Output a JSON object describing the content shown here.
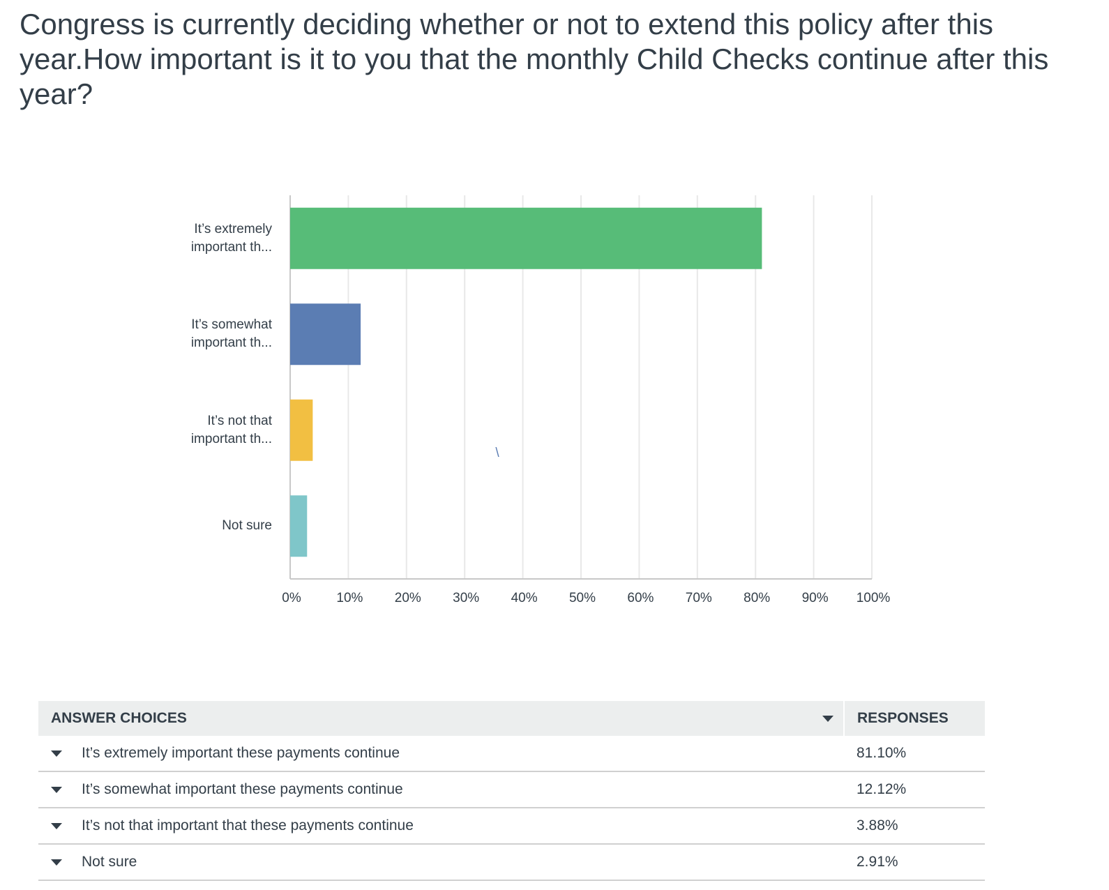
{
  "chart_data": {
    "type": "hbar",
    "title": "Congress is currently deciding whether or not to extend this policy after this year.How important is it to you that the monthly Child Checks continue after this year?",
    "categories": [
      "It’s extremely important th...",
      "It’s somewhat important th...",
      "It’s not that important th...",
      "Not sure"
    ],
    "values": [
      81.1,
      12.12,
      3.88,
      2.91
    ],
    "colors": [
      "#57bc78",
      "#5b7db3",
      "#f2bf42",
      "#7fc6c9"
    ],
    "xlim": [
      0,
      100
    ],
    "xticks": [
      {
        "value": 0,
        "label": "0%"
      },
      {
        "value": 10,
        "label": "10%"
      },
      {
        "value": 20,
        "label": "20%"
      },
      {
        "value": 30,
        "label": "30%"
      },
      {
        "value": 40,
        "label": "40%"
      },
      {
        "value": 50,
        "label": "50%"
      },
      {
        "value": 60,
        "label": "60%"
      },
      {
        "value": 70,
        "label": "70%"
      },
      {
        "value": 80,
        "label": "80%"
      },
      {
        "value": 90,
        "label": "90%"
      },
      {
        "value": 100,
        "label": "100%"
      }
    ],
    "grid": true,
    "annotation": "\\"
  },
  "table": {
    "headers": [
      "ANSWER CHOICES",
      "RESPONSES"
    ],
    "rows": [
      [
        "It’s extremely important these payments continue",
        "81.10%"
      ],
      [
        "It’s somewhat important these payments continue",
        "12.12%"
      ],
      [
        "It’s not that important that these payments continue",
        "3.88%"
      ],
      [
        "Not sure",
        "2.91%"
      ]
    ]
  }
}
